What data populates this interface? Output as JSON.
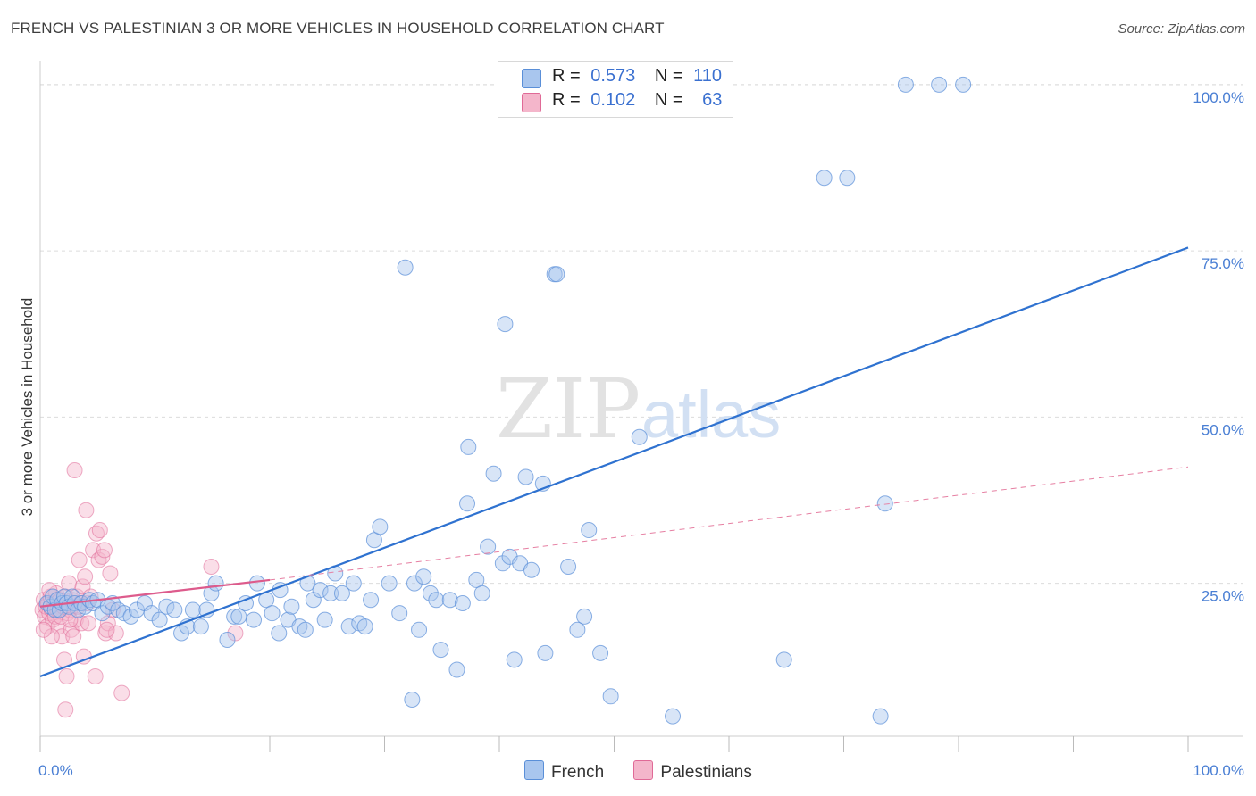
{
  "title": "FRENCH VS PALESTINIAN 3 OR MORE VEHICLES IN HOUSEHOLD CORRELATION CHART",
  "source": "Source: ZipAtlas.com",
  "colors": {
    "french": "#5a8fd8",
    "french_fill": "#a9c6ee",
    "palestinian": "#e06a97",
    "palestinian_fill": "#f4b6cb",
    "axis_text": "#4a7fd4"
  },
  "legend_top": {
    "rows": [
      {
        "r_label": "R =",
        "r_value": "0.573",
        "n_label": "N =",
        "n_value": "110"
      },
      {
        "r_label": "R =",
        "r_value": "0.102",
        "n_label": "N =",
        "n_value": "63"
      }
    ]
  },
  "legend_bottom": {
    "items": [
      "French",
      "Palestinians"
    ]
  },
  "watermark": {
    "zip": "ZIP",
    "atlas": "atlas"
  },
  "chart_data": {
    "type": "scatter",
    "ylabel": "3 or more Vehicles in Household",
    "x_tick_labels": [
      "0.0%",
      "100.0%"
    ],
    "y_tick_labels": [
      "100.0%",
      "75.0%",
      "50.0%",
      "25.0%"
    ],
    "xlim": [
      0,
      100
    ],
    "ylim": [
      2,
      102
    ],
    "grid": true,
    "series": [
      {
        "name": "French",
        "trend": {
          "x": [
            0,
            100
          ],
          "y": [
            11.0,
            75.5
          ]
        },
        "points": [
          [
            0.6,
            22
          ],
          [
            0.9,
            21.5
          ],
          [
            1.1,
            23
          ],
          [
            1.3,
            21
          ],
          [
            1.5,
            22.5
          ],
          [
            1.7,
            21
          ],
          [
            1.9,
            22
          ],
          [
            2.1,
            23
          ],
          [
            2.3,
            22
          ],
          [
            2.5,
            21.5
          ],
          [
            2.8,
            23
          ],
          [
            3.0,
            22
          ],
          [
            3.3,
            21
          ],
          [
            3.6,
            22
          ],
          [
            3.9,
            21.5
          ],
          [
            4.3,
            22.5
          ],
          [
            4.6,
            22
          ],
          [
            5.0,
            22.5
          ],
          [
            5.4,
            20.5
          ],
          [
            5.9,
            21.5
          ],
          [
            6.3,
            22
          ],
          [
            6.8,
            21
          ],
          [
            7.3,
            20.5
          ],
          [
            7.9,
            20
          ],
          [
            8.4,
            21
          ],
          [
            9.1,
            22
          ],
          [
            9.7,
            20.5
          ],
          [
            10.4,
            19.5
          ],
          [
            11.0,
            21.5
          ],
          [
            11.7,
            21
          ],
          [
            12.3,
            17.5
          ],
          [
            12.8,
            18.5
          ],
          [
            13.3,
            21
          ],
          [
            14.0,
            18.5
          ],
          [
            14.5,
            21
          ],
          [
            14.9,
            23.5
          ],
          [
            15.3,
            25
          ],
          [
            16.3,
            16.5
          ],
          [
            16.9,
            20
          ],
          [
            17.3,
            20
          ],
          [
            17.9,
            22
          ],
          [
            18.6,
            19.5
          ],
          [
            18.9,
            25
          ],
          [
            19.7,
            22.5
          ],
          [
            20.2,
            20.5
          ],
          [
            20.9,
            24
          ],
          [
            20.8,
            17.5
          ],
          [
            21.6,
            19.5
          ],
          [
            21.9,
            21.5
          ],
          [
            22.6,
            18.5
          ],
          [
            23.1,
            18
          ],
          [
            23.3,
            25
          ],
          [
            23.8,
            22.5
          ],
          [
            24.4,
            24
          ],
          [
            24.8,
            19.5
          ],
          [
            25.3,
            23.5
          ],
          [
            25.7,
            26.5
          ],
          [
            26.3,
            23.5
          ],
          [
            26.9,
            18.5
          ],
          [
            27.3,
            25
          ],
          [
            27.8,
            19
          ],
          [
            28.3,
            18.5
          ],
          [
            28.8,
            22.5
          ],
          [
            29.1,
            31.5
          ],
          [
            29.6,
            33.5
          ],
          [
            30.4,
            25
          ],
          [
            31.3,
            20.5
          ],
          [
            31.8,
            72.5
          ],
          [
            32.4,
            7.5
          ],
          [
            32.6,
            25
          ],
          [
            33.0,
            18
          ],
          [
            33.4,
            26
          ],
          [
            34.0,
            23.5
          ],
          [
            34.5,
            22.5
          ],
          [
            34.9,
            15
          ],
          [
            35.7,
            22.5
          ],
          [
            36.3,
            12
          ],
          [
            36.8,
            22
          ],
          [
            37.2,
            37
          ],
          [
            37.3,
            45.5
          ],
          [
            38.0,
            25.5
          ],
          [
            38.5,
            23.5
          ],
          [
            39.0,
            30.5
          ],
          [
            39.5,
            41.5
          ],
          [
            40.3,
            28
          ],
          [
            40.5,
            64
          ],
          [
            40.9,
            29
          ],
          [
            41.3,
            13.5
          ],
          [
            41.8,
            28
          ],
          [
            42.3,
            41
          ],
          [
            42.8,
            27
          ],
          [
            43.8,
            40
          ],
          [
            44.0,
            14.5
          ],
          [
            44.8,
            71.5
          ],
          [
            45.0,
            71.5
          ],
          [
            46.0,
            27.5
          ],
          [
            46.8,
            18
          ],
          [
            47.4,
            20
          ],
          [
            47.8,
            33
          ],
          [
            48.8,
            14.5
          ],
          [
            49.7,
            8
          ],
          [
            52.2,
            47
          ],
          [
            55.1,
            5
          ],
          [
            59.4,
            100
          ],
          [
            59.4,
            100
          ],
          [
            64.8,
            13.5
          ],
          [
            68.3,
            86
          ],
          [
            70.3,
            86
          ],
          [
            73.2,
            5
          ],
          [
            73.6,
            37
          ],
          [
            75.4,
            100
          ],
          [
            78.3,
            100
          ],
          [
            80.4,
            100
          ]
        ]
      },
      {
        "name": "Palestinians",
        "trend": {
          "x": [
            0,
            20
          ],
          "y": [
            21.5,
            25.5
          ]
        },
        "trend_extension": {
          "x": [
            20,
            100
          ],
          "y": [
            25.5,
            42.5
          ]
        },
        "points": [
          [
            0.2,
            21
          ],
          [
            0.3,
            22.5
          ],
          [
            0.4,
            20
          ],
          [
            0.5,
            21.5
          ],
          [
            0.6,
            18.5
          ],
          [
            0.7,
            22
          ],
          [
            0.8,
            20.5
          ],
          [
            0.9,
            23
          ],
          [
            1.0,
            21
          ],
          [
            1.1,
            19.5
          ],
          [
            1.2,
            22
          ],
          [
            1.3,
            20
          ],
          [
            1.4,
            23.5
          ],
          [
            1.5,
            21
          ],
          [
            1.6,
            18.5
          ],
          [
            1.7,
            22.5
          ],
          [
            1.8,
            20
          ],
          [
            1.9,
            17
          ],
          [
            2.0,
            21.5
          ],
          [
            2.1,
            13.5
          ],
          [
            2.2,
            23
          ],
          [
            2.3,
            11
          ],
          [
            2.4,
            20.5
          ],
          [
            2.5,
            25
          ],
          [
            2.6,
            21
          ],
          [
            2.7,
            18
          ],
          [
            2.8,
            22.5
          ],
          [
            2.9,
            17
          ],
          [
            3.0,
            42
          ],
          [
            3.1,
            19.5
          ],
          [
            3.2,
            23
          ],
          [
            3.3,
            21.5
          ],
          [
            3.4,
            28.5
          ],
          [
            3.5,
            22
          ],
          [
            3.6,
            19
          ],
          [
            3.7,
            24.5
          ],
          [
            3.8,
            14
          ],
          [
            3.9,
            26
          ],
          [
            4.0,
            36
          ],
          [
            4.1,
            22
          ],
          [
            4.2,
            19
          ],
          [
            4.4,
            23
          ],
          [
            4.6,
            30
          ],
          [
            4.8,
            11
          ],
          [
            4.9,
            32.5
          ],
          [
            5.1,
            28.5
          ],
          [
            5.2,
            33
          ],
          [
            5.4,
            29
          ],
          [
            5.6,
            30
          ],
          [
            5.7,
            17.5
          ],
          [
            5.9,
            19
          ],
          [
            6.1,
            26.5
          ],
          [
            6.3,
            21
          ],
          [
            6.6,
            17.5
          ],
          [
            7.1,
            8.5
          ],
          [
            2.2,
            6
          ],
          [
            14.9,
            27.5
          ],
          [
            17.0,
            17.5
          ],
          [
            1.0,
            17
          ],
          [
            2.6,
            19.5
          ],
          [
            0.3,
            18
          ],
          [
            5.8,
            18
          ],
          [
            0.8,
            24
          ]
        ]
      }
    ]
  }
}
